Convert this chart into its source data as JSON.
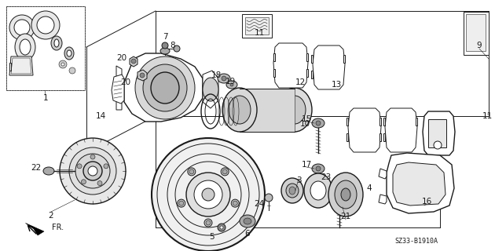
{
  "bg_color": "#ffffff",
  "line_color": "#1a1a1a",
  "diagram_code": "SZ33-B1910A",
  "figsize": [
    6.3,
    3.2
  ],
  "dpi": 100
}
